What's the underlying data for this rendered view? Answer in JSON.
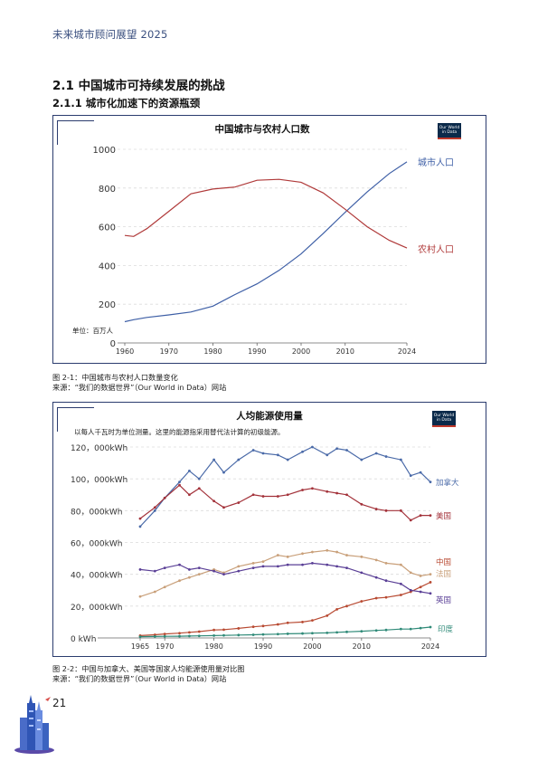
{
  "header": {
    "title": "未来城市顾问展望 2025"
  },
  "section": {
    "title": "2.1 中国城市可持续发展的挑战",
    "subtitle": "2.1.1 城市化加速下的资源瓶颈"
  },
  "figure1": {
    "caption": "图 2-1：中国城市与农村人口数量变化",
    "source": "来源：“我们的数据世界”（Our World in Data）网站",
    "logo": "Our World in Data"
  },
  "figure2": {
    "caption": "图 2-2：中国与加拿大、美国等国家人均能源使用量对比图",
    "source": "来源：“我们的数据世界”（Our World in Data）网站",
    "logo": "Our World in Data"
  },
  "page": {
    "number": "21"
  },
  "chart_data": [
    {
      "type": "line",
      "title": "中国城市与农村人口数",
      "unit_note": "单位：百万人",
      "x_ticks": [
        "1960",
        "1970",
        "1980",
        "1990",
        "2000",
        "2010",
        "2024"
      ],
      "y_ticks": [
        "0",
        "200",
        "400",
        "600",
        "800",
        "1000"
      ],
      "xlim": [
        1960,
        2024
      ],
      "ylim": [
        0,
        1000
      ],
      "grid": true,
      "series": [
        {
          "name": "城市人口",
          "color": "#3e5fa6",
          "x": [
            1960,
            1962,
            1965,
            1970,
            1975,
            1980,
            1985,
            1990,
            1995,
            2000,
            2005,
            2010,
            2015,
            2020,
            2024
          ],
          "y": [
            110,
            120,
            132,
            145,
            160,
            190,
            250,
            305,
            375,
            460,
            565,
            675,
            780,
            875,
            935
          ]
        },
        {
          "name": "农村人口",
          "color": "#b03a3a",
          "x": [
            1960,
            1962,
            1965,
            1970,
            1975,
            1980,
            1985,
            1990,
            1995,
            2000,
            2005,
            2010,
            2015,
            2020,
            2024
          ],
          "y": [
            555,
            550,
            590,
            680,
            770,
            795,
            805,
            840,
            845,
            830,
            775,
            690,
            600,
            530,
            490
          ]
        }
      ]
    },
    {
      "type": "line",
      "title": "人均能源使用量",
      "subtitle": "以每人千瓦时为单位测量。这里的能源指采用替代法计算的初级能源。",
      "x_ticks": [
        "1965",
        "1970",
        "1980",
        "1990",
        "2000",
        "2010",
        "2024"
      ],
      "y_ticks": [
        "0 kWh",
        "20，000kWh",
        "40，000kWh",
        "60，000kWh",
        "80，000kWh",
        "100，000kWh",
        "120，000kWh"
      ],
      "xlim": [
        1965,
        2024
      ],
      "ylim": [
        0,
        120000
      ],
      "grid": true,
      "series": [
        {
          "name": "加拿大",
          "color": "#4a6aa8",
          "x": [
            1965,
            1968,
            1970,
            1973,
            1975,
            1977,
            1980,
            1982,
            1985,
            1988,
            1990,
            1993,
            1995,
            1998,
            2000,
            2003,
            2005,
            2007,
            2010,
            2013,
            2015,
            2018,
            2020,
            2022,
            2024
          ],
          "y": [
            70000,
            80000,
            88000,
            98000,
            105000,
            100000,
            112000,
            104000,
            112000,
            118000,
            116000,
            115000,
            112000,
            117000,
            120000,
            115000,
            119000,
            118000,
            112000,
            116000,
            114000,
            112000,
            102000,
            104000,
            98000
          ]
        },
        {
          "name": "美国",
          "color": "#a3323a",
          "x": [
            1965,
            1968,
            1970,
            1973,
            1975,
            1977,
            1980,
            1982,
            1985,
            1988,
            1990,
            1993,
            1995,
            1998,
            2000,
            2003,
            2005,
            2007,
            2010,
            2013,
            2015,
            2018,
            2020,
            2022,
            2024
          ],
          "y": [
            75000,
            82000,
            88000,
            96000,
            90000,
            94000,
            86000,
            82000,
            85000,
            90000,
            89000,
            89000,
            90000,
            93000,
            94000,
            92000,
            91000,
            90000,
            84000,
            81000,
            80000,
            80000,
            74000,
            77000,
            77000
          ]
        },
        {
          "name": "法国",
          "color": "#c9a07a",
          "x": [
            1965,
            1968,
            1970,
            1973,
            1975,
            1977,
            1980,
            1982,
            1985,
            1988,
            1990,
            1993,
            1995,
            1998,
            2000,
            2003,
            2005,
            2007,
            2010,
            2013,
            2015,
            2018,
            2020,
            2022,
            2024
          ],
          "y": [
            26000,
            29000,
            32000,
            36000,
            38000,
            40000,
            43000,
            41000,
            45000,
            47000,
            48000,
            52000,
            51000,
            53000,
            54000,
            55000,
            54000,
            52000,
            51000,
            49000,
            47000,
            46000,
            41000,
            39000,
            40000
          ]
        },
        {
          "name": "中国",
          "color": "#b84a32",
          "x": [
            1965,
            1968,
            1970,
            1973,
            1975,
            1977,
            1980,
            1982,
            1985,
            1988,
            1990,
            1993,
            1995,
            1998,
            2000,
            2003,
            2005,
            2007,
            2010,
            2013,
            2015,
            2018,
            2020,
            2022,
            2024
          ],
          "y": [
            1500,
            2000,
            2500,
            3000,
            3500,
            4000,
            5000,
            5200,
            6000,
            7000,
            7500,
            8500,
            9500,
            10000,
            11000,
            14000,
            18000,
            20000,
            23000,
            25000,
            25500,
            27000,
            29000,
            32000,
            35000
          ]
        },
        {
          "name": "英国",
          "color": "#5a3f96",
          "x": [
            1965,
            1968,
            1970,
            1973,
            1975,
            1977,
            1980,
            1982,
            1985,
            1988,
            1990,
            1993,
            1995,
            1998,
            2000,
            2003,
            2005,
            2007,
            2010,
            2013,
            2015,
            2018,
            2020,
            2022,
            2024
          ],
          "y": [
            43000,
            42000,
            44000,
            46000,
            43000,
            44000,
            42000,
            40000,
            42000,
            44000,
            45000,
            45000,
            46000,
            46000,
            47000,
            46000,
            45000,
            44000,
            41000,
            38000,
            36000,
            34000,
            30000,
            29000,
            28000
          ]
        },
        {
          "name": "印度",
          "color": "#2f8a78",
          "x": [
            1965,
            1968,
            1970,
            1973,
            1975,
            1977,
            1980,
            1982,
            1985,
            1988,
            1990,
            1993,
            1995,
            1998,
            2000,
            2003,
            2005,
            2007,
            2010,
            2013,
            2015,
            2018,
            2020,
            2022,
            2024
          ],
          "y": [
            800,
            900,
            1000,
            1100,
            1200,
            1300,
            1500,
            1600,
            1800,
            2000,
            2200,
            2400,
            2600,
            2800,
            3000,
            3200,
            3500,
            3800,
            4200,
            4700,
            5000,
            5600,
            5600,
            6200,
            6800
          ]
        }
      ]
    }
  ]
}
